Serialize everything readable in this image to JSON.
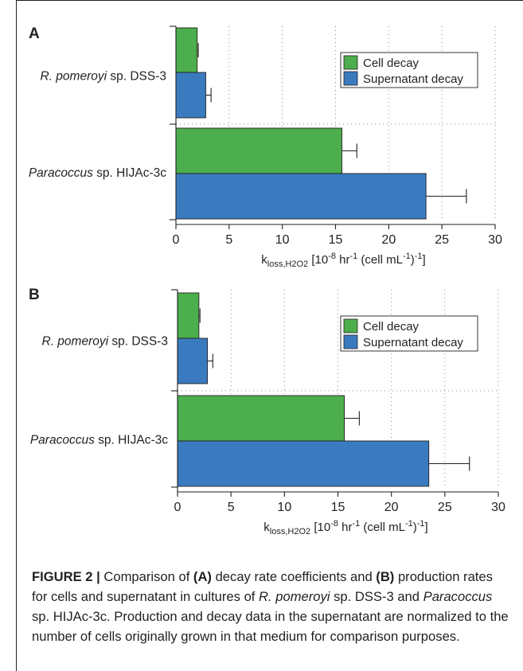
{
  "panels": [
    {
      "id": "A",
      "label": "A",
      "chart_data": {
        "type": "bar",
        "orientation": "horizontal",
        "categories": [
          {
            "parts": [
              {
                "text": "R. pomeroyi",
                "italic": true
              },
              {
                "text": " sp. DSS-3",
                "italic": false
              }
            ]
          },
          {
            "parts": [
              {
                "text": "Paracoccus",
                "italic": true
              },
              {
                "text": " sp. HIJAc-3c",
                "italic": false
              }
            ]
          }
        ],
        "series": [
          {
            "name": "Cell decay",
            "color": "#4cae4c",
            "values": [
              2.0,
              15.6
            ],
            "errors": [
              0.1,
              1.4
            ]
          },
          {
            "name": "Supernatant decay",
            "color": "#3a7bbf",
            "values": [
              2.8,
              23.5
            ],
            "errors": [
              0.5,
              3.8
            ]
          }
        ],
        "xlim": [
          0,
          30
        ],
        "xticks": [
          "0",
          "5",
          "10",
          "15",
          "20",
          "25",
          "30"
        ],
        "xlabel": {
          "main": "k",
          "sub": "loss,H2O2",
          "rest": " [10",
          "sup1": "-8",
          "mid": " hr",
          "sup2": "-1",
          "mid2": " (cell mL",
          "sup3": "-1",
          "end": ")",
          "sup4": "-1",
          "close": "]"
        },
        "grid": "dotted-vertical",
        "legend_position": "top-right"
      }
    },
    {
      "id": "B",
      "label": "B",
      "chart_data": {
        "type": "bar",
        "orientation": "horizontal",
        "categories": [
          {
            "parts": [
              {
                "text": "R. pomeroyi",
                "italic": true
              },
              {
                "text": " sp. DSS-3",
                "italic": false
              }
            ]
          },
          {
            "parts": [
              {
                "text": "Paracoccus",
                "italic": true
              },
              {
                "text": " sp. HIJAc-3c",
                "italic": false
              }
            ]
          }
        ],
        "series": [
          {
            "name": "Cell decay",
            "color": "#4cae4c",
            "values": [
              2.0,
              15.6
            ],
            "errors": [
              0.1,
              1.4
            ]
          },
          {
            "name": "Supernatant decay",
            "color": "#3a7bbf",
            "values": [
              2.8,
              23.5
            ],
            "errors": [
              0.5,
              3.8
            ]
          }
        ],
        "xlim": [
          0,
          30
        ],
        "xticks": [
          "0",
          "5",
          "10",
          "15",
          "20",
          "25",
          "30"
        ],
        "xlabel": {
          "main": "k",
          "sub": "loss,H2O2",
          "rest": " [10",
          "sup1": "-8",
          "mid": " hr",
          "sup2": "-1",
          "mid2": " (cell mL",
          "sup3": "-1",
          "end": ")",
          "sup4": "-1",
          "close": "]"
        },
        "grid": "dotted-vertical",
        "legend_position": "top-right"
      }
    }
  ],
  "caption": {
    "figure_label": "FIGURE 2 |",
    "t1": " Comparison of ",
    "a": "(A)",
    "t2": " decay rate coefficients and ",
    "b": "(B)",
    "t3": " production rates for cells and supernatant in cultures of ",
    "org1": "R. pomeroyi",
    "t4": " sp. DSS-3 and ",
    "org2": "Paracoccus",
    "t5": " sp. HIJAc-3c. Production and decay data in the supernatant are normalized to the number of cells originally grown in that medium for comparison purposes."
  }
}
